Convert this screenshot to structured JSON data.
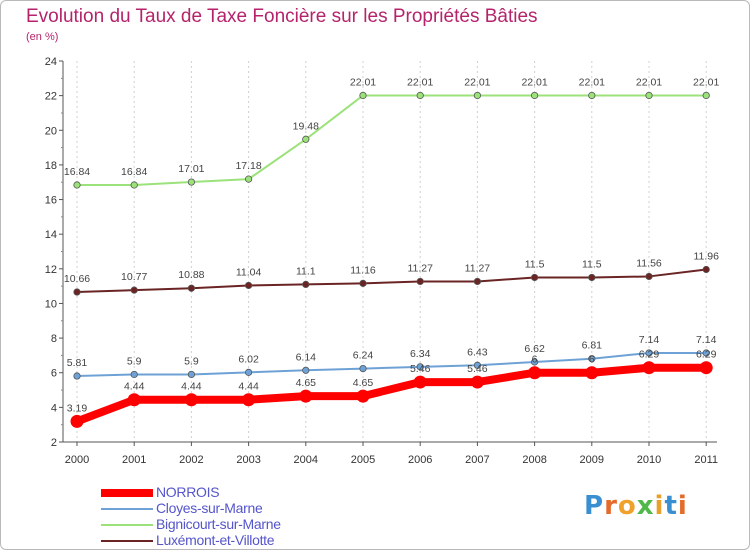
{
  "title": "Evolution du Taux de Taxe Foncière sur les Propriétés Bâties",
  "subtitle": "(en %)",
  "logo": {
    "letters": [
      "P",
      "r",
      "o",
      "x",
      "i",
      "t",
      "i"
    ],
    "colors": [
      "#3a8fd1",
      "#e46b2a",
      "#f0a12b",
      "#4fb848",
      "#e8a02a",
      "#3a8fd1",
      "#e46b2a"
    ]
  },
  "chart_data": {
    "type": "line",
    "title": "Evolution du Taux de Taxe Foncière sur les Propriétés Bâties",
    "ylabel": "(en %)",
    "ylim": [
      2,
      24
    ],
    "yticks": [
      "2",
      "4",
      "6",
      "8",
      "10",
      "12",
      "14",
      "16",
      "18",
      "20",
      "22",
      "24"
    ],
    "categories": [
      "2000",
      "2001",
      "2002",
      "2003",
      "2004",
      "2005",
      "2006",
      "2007",
      "2008",
      "2009",
      "2010",
      "2011"
    ],
    "series": [
      {
        "name": "NORROIS",
        "color": "#ff0000",
        "values": [
          3.19,
          4.44,
          4.44,
          4.44,
          4.65,
          4.65,
          5.46,
          5.46,
          6,
          6,
          6.29,
          6.29
        ],
        "labels": [
          "3.19",
          "4.44",
          "4.44",
          "4.44",
          "4.65",
          "4.65",
          "5.46",
          "5.46",
          "6",
          "6",
          "6.29",
          "6.29"
        ]
      },
      {
        "name": "Cloyes-sur-Marne",
        "color": "#6ea2d6",
        "values": [
          5.81,
          5.9,
          5.9,
          6.02,
          6.14,
          6.24,
          6.34,
          6.43,
          6.62,
          6.81,
          7.14,
          7.14
        ],
        "labels": [
          "5.81",
          "5.9",
          "5.9",
          "6.02",
          "6.14",
          "6.24",
          "6.34",
          "6.43",
          "6.62",
          "6.81",
          "7.14",
          "7.14"
        ]
      },
      {
        "name": "Bignicourt-sur-Marne",
        "color": "#9be27a",
        "values": [
          16.84,
          16.84,
          17.01,
          17.18,
          19.48,
          22.01,
          22.01,
          22.01,
          22.01,
          22.01,
          22.01,
          22.01
        ],
        "labels": [
          "16.84",
          "16.84",
          "17.01",
          "17.18",
          "19.48",
          "22.01",
          "22.01",
          "22.01",
          "22.01",
          "22.01",
          "22.01",
          "22.01"
        ]
      },
      {
        "name": "Luxémont-et-Villotte",
        "color": "#6b2424",
        "values": [
          10.66,
          10.77,
          10.88,
          11.04,
          11.1,
          11.16,
          11.27,
          11.27,
          11.5,
          11.5,
          11.56,
          11.96
        ],
        "labels": [
          "10.66",
          "10.77",
          "10.88",
          "11.04",
          "11.1",
          "11.16",
          "11.27",
          "11.27",
          "11.5",
          "11.5",
          "11.56",
          "11.96"
        ]
      }
    ]
  }
}
